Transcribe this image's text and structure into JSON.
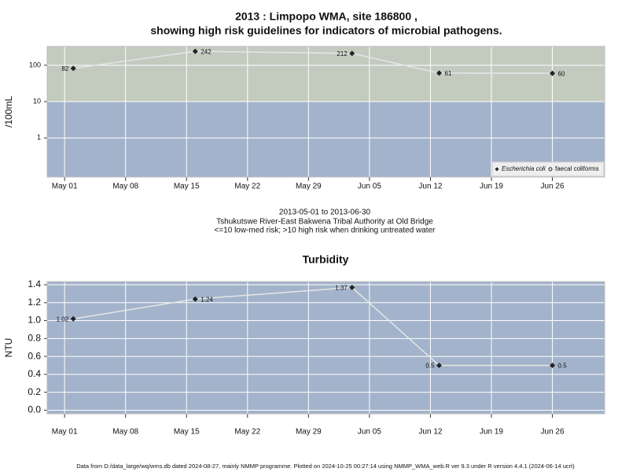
{
  "chart_data": [
    {
      "type": "line",
      "title": "2013 : Limpopo WMA, site 186800 ,",
      "subtitle": "showing high risk guidelines for indicators of microbial pathogens.",
      "y_label": "/100mL",
      "log_y": true,
      "threshold": 10,
      "high_risk_color": "#c3cbbf",
      "background_color": "#a3b3cb",
      "grid": true,
      "legend": "bottom-right",
      "x": [
        "2013-05-02",
        "2013-05-16",
        "2013-06-03",
        "2013-06-13",
        "2013-06-26"
      ],
      "series": [
        {
          "name": "Escherichia coli",
          "color": "#222222",
          "line_color": "#e6e6e6",
          "marker": "diamond",
          "values": [
            82,
            242,
            212,
            61,
            60
          ]
        },
        {
          "name": "faecal coliforms",
          "color": "#222222",
          "line_color": "#e6e6e6",
          "marker": "circle",
          "values": [
            null,
            null,
            null,
            null,
            null
          ]
        }
      ],
      "xlim": [
        "2013-04-29",
        "2013-07-02"
      ],
      "xticks": [
        {
          "value": "2013-05-01",
          "label": "May 01"
        },
        {
          "value": "2013-05-08",
          "label": "May 08"
        },
        {
          "value": "2013-05-15",
          "label": "May 15"
        },
        {
          "value": "2013-05-22",
          "label": "May 22"
        },
        {
          "value": "2013-05-29",
          "label": "May 29"
        },
        {
          "value": "2013-06-05",
          "label": "Jun 05"
        },
        {
          "value": "2013-06-12",
          "label": "Jun 12"
        },
        {
          "value": "2013-06-19",
          "label": "Jun 19"
        },
        {
          "value": "2013-06-26",
          "label": "Jun 26"
        }
      ],
      "ylim": [
        0.084,
        330
      ],
      "yticks": [
        1,
        10,
        100
      ],
      "annotations": [
        "2013-05-01 to 2013-06-30",
        "Tshukutswe River-East Bakwena Tribal Authority at Old Bridge",
        "<=10 low-med risk; >10 high risk when drinking untreated water"
      ]
    },
    {
      "type": "line",
      "title": "Turbidity",
      "y_label": "NTU",
      "background_color": "#a3b3cb",
      "grid": true,
      "x": [
        "2013-05-02",
        "2013-05-16",
        "2013-06-03",
        "2013-06-13",
        "2013-06-26"
      ],
      "series": [
        {
          "color": "#222222",
          "line_color": "#e6e6e6",
          "marker": "diamond",
          "values": [
            1.02,
            1.24,
            1.37,
            0.5,
            0.5
          ]
        }
      ],
      "xlim": [
        "2013-04-29",
        "2013-07-02"
      ],
      "xticks": [
        {
          "value": "2013-05-01",
          "label": "May 01"
        },
        {
          "value": "2013-05-08",
          "label": "May 08"
        },
        {
          "value": "2013-05-15",
          "label": "May 15"
        },
        {
          "value": "2013-05-22",
          "label": "May 22"
        },
        {
          "value": "2013-05-29",
          "label": "May 29"
        },
        {
          "value": "2013-06-05",
          "label": "Jun 05"
        },
        {
          "value": "2013-06-12",
          "label": "Jun 12"
        },
        {
          "value": "2013-06-19",
          "label": "Jun 19"
        },
        {
          "value": "2013-06-26",
          "label": "Jun 26"
        }
      ],
      "ylim": [
        -0.04,
        1.435
      ],
      "yticks": [
        {
          "value": 0,
          "label": "0.0"
        },
        0.2,
        0.4,
        0.6,
        0.8,
        {
          "value": 1,
          "label": "1.0"
        },
        1.2,
        1.4
      ]
    }
  ],
  "footer": "Data from D:/data_large/wq/wms.db dated 2024-08-27, mainly NMMP programme. Plotted on 2024-10-25 00:27:14 using NMMP_WMA_web.R ver 9.3 under R version 4.4.1 (2024-06-14 ucrt)"
}
